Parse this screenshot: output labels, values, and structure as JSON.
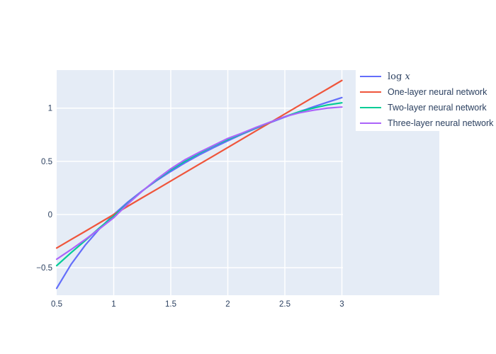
{
  "chart_data": {
    "type": "line",
    "title": "",
    "xlabel": "",
    "ylabel": "",
    "plot_bg_color": "#E5ECF6",
    "grid_color": "#ffffff",
    "tick_label_color": "#2a3f5f",
    "legend_bg_color": "#ffffff",
    "legend_position": "top-right",
    "grid": true,
    "x_tick_labels": [
      "0.5",
      "1",
      "1.5",
      "2",
      "2.5",
      "3"
    ],
    "x_tick_values": [
      0.5,
      1,
      1.5,
      2,
      2.5,
      3
    ],
    "y_tick_labels": [
      "1",
      "0.5",
      "0",
      "−0.5"
    ],
    "y_tick_values": [
      1,
      0.5,
      0,
      -0.5
    ],
    "x_range": [
      0.5,
      3
    ],
    "y_range": [
      -0.77,
      1.36
    ],
    "legend_math": {
      "prefix": "log ",
      "var": "x"
    },
    "x": [
      0.5,
      0.625,
      0.75,
      0.875,
      1,
      1.125,
      1.25,
      1.375,
      1.5,
      1.625,
      1.75,
      1.875,
      2,
      2.125,
      2.25,
      2.375,
      2.5,
      2.625,
      2.75,
      2.875,
      3
    ],
    "series": [
      {
        "name": "log x",
        "color": "#636EFA",
        "math": true,
        "values": [
          -0.693,
          -0.47,
          -0.288,
          -0.134,
          0,
          0.118,
          0.223,
          0.318,
          0.405,
          0.486,
          0.56,
          0.629,
          0.693,
          0.754,
          0.811,
          0.865,
          0.916,
          0.965,
          1.012,
          1.056,
          1.099
        ]
      },
      {
        "name": "One-layer neural network",
        "color": "#EF553B",
        "math": false,
        "values": [
          -0.315,
          -0.236,
          -0.158,
          -0.079,
          0,
          0.079,
          0.158,
          0.236,
          0.315,
          0.394,
          0.473,
          0.551,
          0.63,
          0.709,
          0.788,
          0.866,
          0.945,
          1.024,
          1.103,
          1.181,
          1.26
        ]
      },
      {
        "name": "Two-layer neural network",
        "color": "#00CC96",
        "math": false,
        "values": [
          -0.48,
          -0.36,
          -0.245,
          -0.125,
          -0.015,
          0.105,
          0.22,
          0.325,
          0.42,
          0.5,
          0.575,
          0.645,
          0.705,
          0.76,
          0.815,
          0.87,
          0.92,
          0.965,
          1.0,
          1.03,
          1.05
        ]
      },
      {
        "name": "Three-layer neural network",
        "color": "#AB63FA",
        "math": false,
        "values": [
          -0.42,
          -0.33,
          -0.235,
          -0.135,
          -0.03,
          0.1,
          0.22,
          0.33,
          0.43,
          0.515,
          0.585,
          0.65,
          0.715,
          0.765,
          0.82,
          0.87,
          0.92,
          0.955,
          0.98,
          1.0,
          1.01
        ]
      }
    ]
  }
}
